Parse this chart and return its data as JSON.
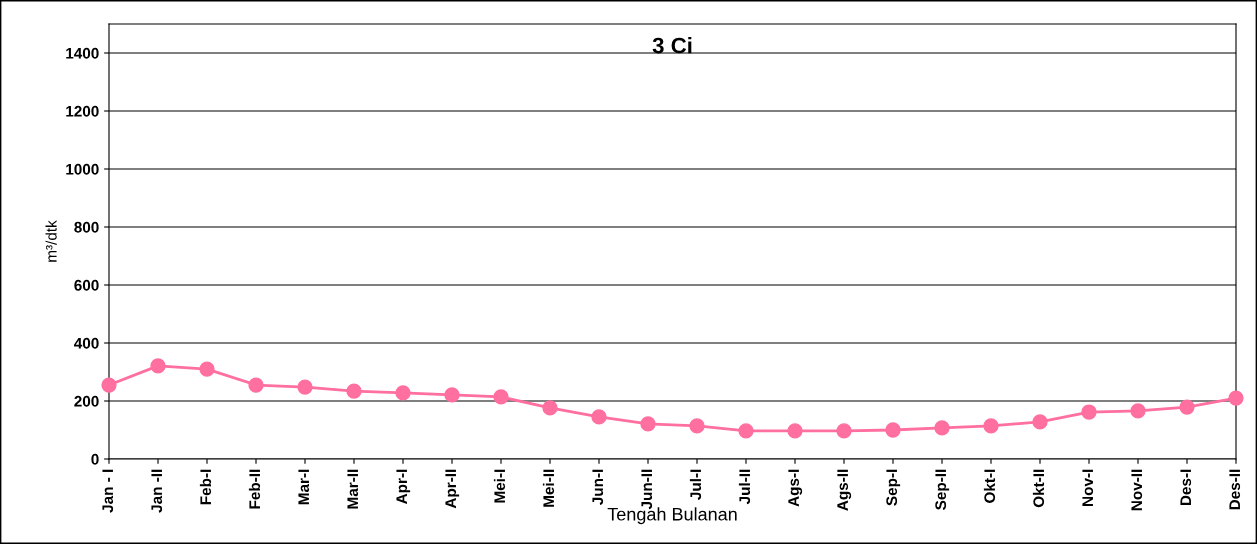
{
  "chart_data": {
    "type": "line",
    "title": "3 Ci",
    "xlabel": "Tengah Bulanan",
    "ylabel": "m³/dtk",
    "categories": [
      "Jan - I",
      "Jan -II",
      "Feb-I",
      "Feb-II",
      "Mar-I",
      "Mar-II",
      "Apr-I",
      "Apr-II",
      "Mei-I",
      "Mei-II",
      "Jun-I",
      "Jun-II",
      "Jul-I",
      "Jul-II",
      "Ags-I",
      "Ags-II",
      "Sep-I",
      "Sep-II",
      "Okt-I",
      "Okt-II",
      "Nov-I",
      "Nov-II",
      "Des-I",
      "Des-II"
    ],
    "series": [
      {
        "color": "#ff6f9f",
        "values": [
          255,
          321,
          310,
          255,
          248,
          234,
          228,
          221,
          214,
          176,
          145,
          121,
          114,
          97,
          97,
          97,
          100,
          107,
          114,
          128,
          162,
          166,
          179,
          210
        ]
      }
    ],
    "ylim": [
      0,
      1500
    ],
    "yticks": [
      0,
      200,
      400,
      600,
      800,
      1000,
      1200,
      1400
    ],
    "grid": "y",
    "legend": false,
    "marker": "circle",
    "line_style": "solid"
  }
}
